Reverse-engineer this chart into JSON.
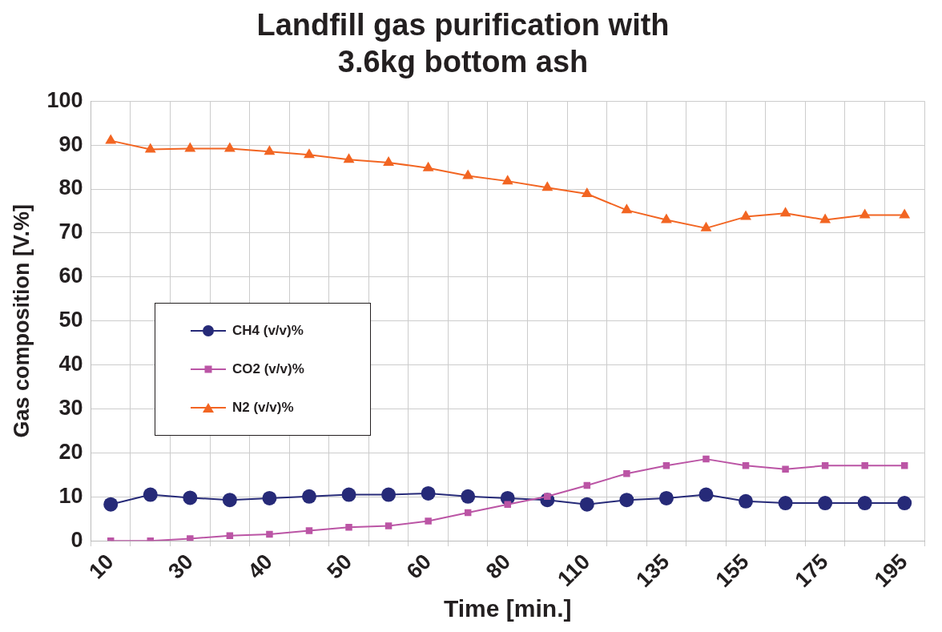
{
  "chart_data": {
    "type": "line",
    "title": "Landfill gas purification with 3.6kg bottom ash",
    "xlabel": "Time [min.]",
    "ylabel": "Gas composition [V.%]",
    "categories": [
      "10",
      null,
      "30",
      null,
      "40",
      null,
      "50",
      null,
      "60",
      null,
      "80",
      null,
      "110",
      null,
      "135",
      null,
      "155",
      null,
      "175",
      null,
      "195"
    ],
    "series": [
      {
        "name": "CH4 (v/v)%",
        "color": "#262a78",
        "marker": "circle",
        "values": [
          8.3,
          10.5,
          9.8,
          9.3,
          9.7,
          10.1,
          10.5,
          10.5,
          10.8,
          10.1,
          9.7,
          9.3,
          8.3,
          9.3,
          9.7,
          10.5,
          9,
          8.6,
          8.6,
          8.6,
          8.6
        ]
      },
      {
        "name": "CO2 (v/v)%",
        "color": "#bb55a5",
        "marker": "square",
        "values": [
          0,
          0,
          0.5,
          1.2,
          1.5,
          2.3,
          3.1,
          3.4,
          4.5,
          6.4,
          8.3,
          10.1,
          12.6,
          15.3,
          17.1,
          18.6,
          17.1,
          16.3,
          17.1,
          17.1,
          17.1
        ]
      },
      {
        "name": "N2 (v/v)%",
        "color": "#f26522",
        "marker": "triangle",
        "values": [
          91,
          89,
          89.2,
          89.2,
          88.5,
          87.8,
          86.7,
          86,
          84.8,
          83,
          81.8,
          80.3,
          78.9,
          75.2,
          73,
          71.1,
          73.7,
          74.5,
          73,
          74.1,
          74.1
        ]
      }
    ],
    "ylim": [
      0,
      100
    ],
    "yticks": [
      0,
      10,
      20,
      30,
      40,
      50,
      60,
      70,
      80,
      90,
      100
    ],
    "grid": true,
    "legend": "left",
    "line_style": "solid"
  }
}
